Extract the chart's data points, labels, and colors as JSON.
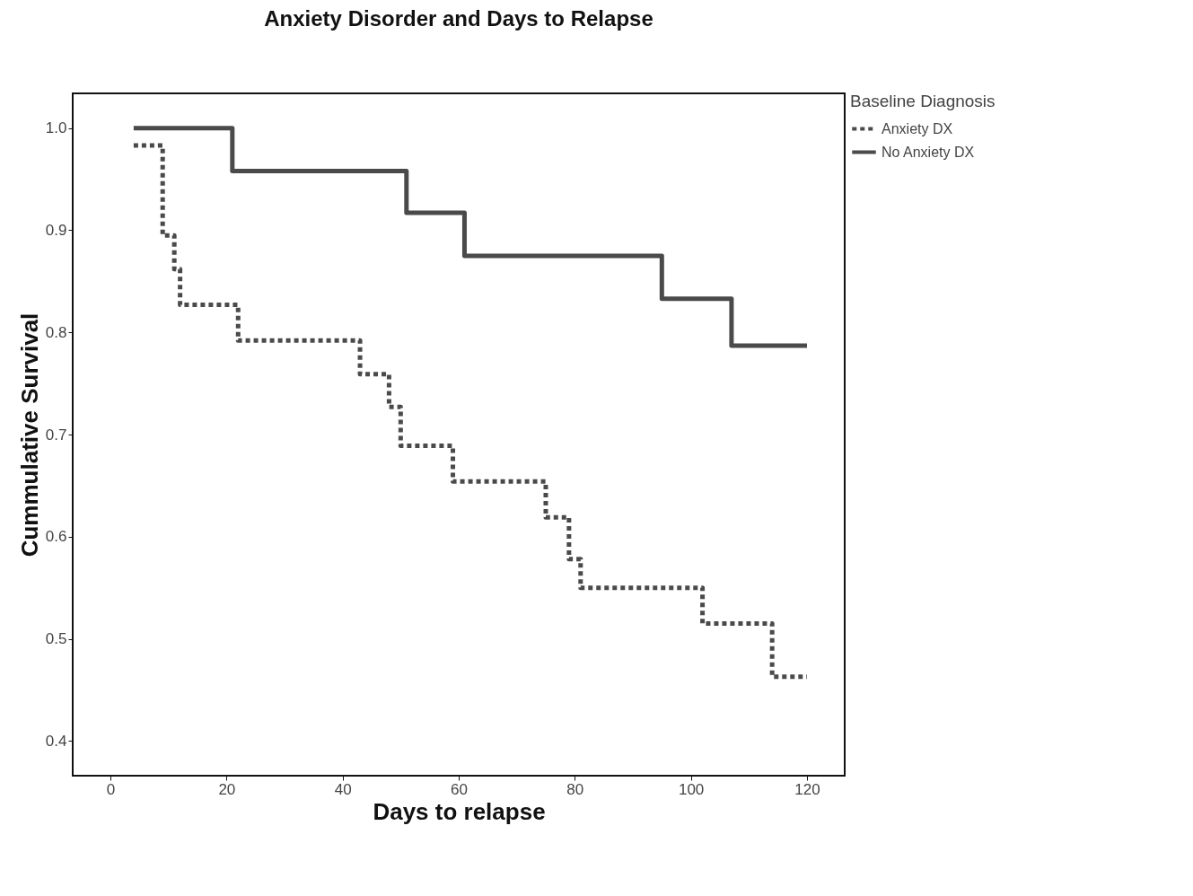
{
  "chart_data": {
    "type": "step",
    "title": "Anxiety Disorder and Days to Relapse",
    "xlabel": "Days to relapse",
    "ylabel": "Cummulative Survival",
    "legend_title": "Baseline Diagnosis",
    "legend": "right",
    "grid": false,
    "xlim": [
      -6.5,
      126.5
    ],
    "ylim": [
      0.366,
      1.034
    ],
    "xticks": [
      0,
      20,
      40,
      60,
      80,
      100,
      120
    ],
    "yticks": [
      0.4,
      0.5,
      0.6,
      0.7,
      0.8,
      0.9,
      {
        "value": 1.0,
        "label": "1.0"
      }
    ],
    "series": [
      {
        "name": "Anxiety DX",
        "color": "#4a4a4a",
        "line_style": "dotted",
        "x": [
          4,
          9,
          11,
          12,
          22,
          43,
          48,
          50,
          59,
          75,
          79,
          81,
          102,
          114,
          120
        ],
        "values": [
          0.983,
          0.895,
          0.862,
          0.827,
          0.792,
          0.759,
          0.727,
          0.689,
          0.654,
          0.619,
          0.578,
          0.55,
          0.515,
          0.463,
          0.463
        ]
      },
      {
        "name": "No Anxiety DX",
        "color": "#4a4a4a",
        "line_style": "solid",
        "x": [
          4,
          21,
          51,
          61,
          95,
          107,
          120
        ],
        "values": [
          1.0,
          0.958,
          0.917,
          0.875,
          0.833,
          0.787,
          0.787
        ]
      }
    ]
  }
}
